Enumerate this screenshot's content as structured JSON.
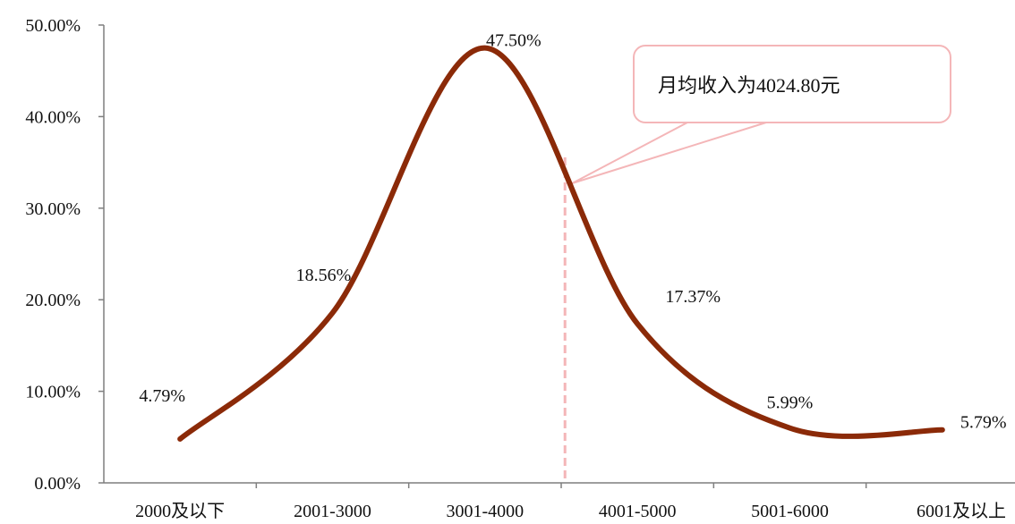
{
  "chart_data": {
    "type": "line",
    "categories": [
      "2000及以下",
      "2001-3000",
      "3001-4000",
      "4001-5000",
      "5001-6000",
      "6001及以上"
    ],
    "series": [
      {
        "values": [
          4.79,
          18.56,
          47.5,
          17.37,
          5.99,
          5.79
        ],
        "labels": [
          "4.79%",
          "18.56%",
          "47.50%",
          "17.37%",
          "5.99%",
          "5.79%"
        ],
        "color": "#8b2a08"
      }
    ],
    "ylim": [
      0,
      50
    ],
    "yticks": [
      "0.00%",
      "10.00%",
      "20.00%",
      "30.00%",
      "40.00%",
      "50.00%"
    ],
    "grid": false,
    "marker_line": {
      "x_value": 4024.8,
      "color": "#f4b6b8"
    },
    "annotation": {
      "text": "月均收入为4024.80元",
      "border_color": "#f4b6b8"
    }
  }
}
